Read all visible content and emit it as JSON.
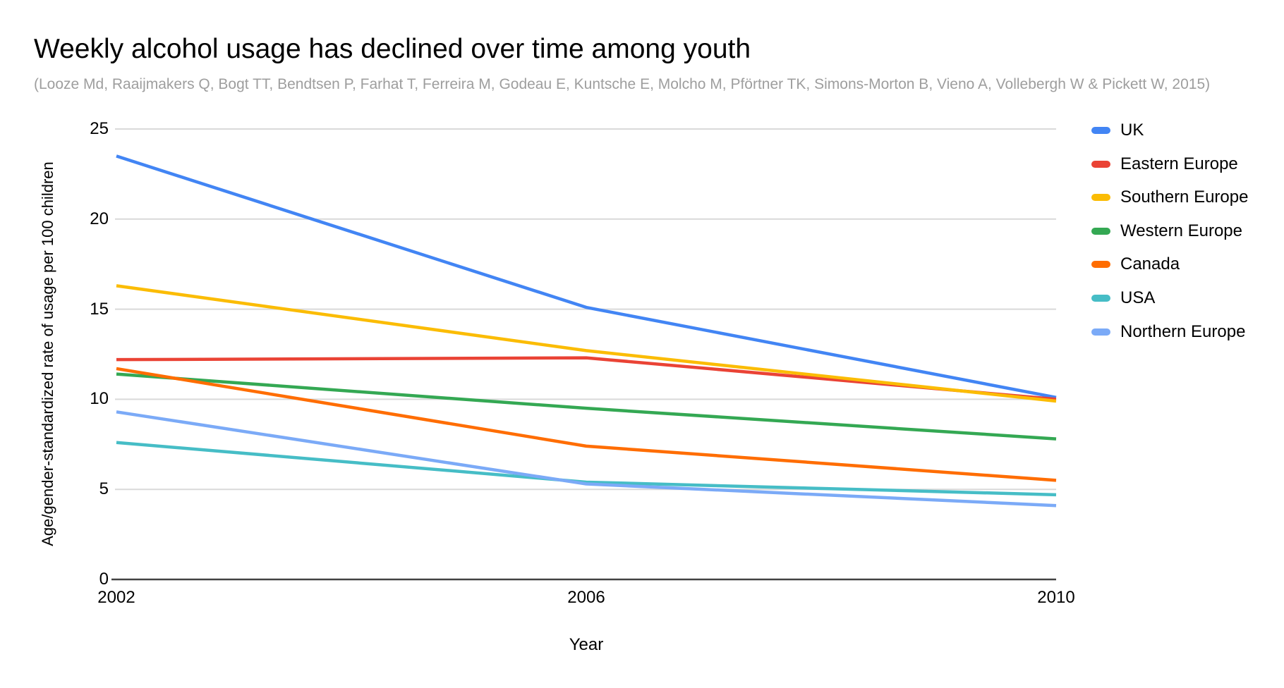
{
  "header": {
    "title": "Weekly alcohol usage has declined over time among youth",
    "subtitle": "(Looze Md, Raaijmakers Q, Bogt TT, Bendtsen P, Farhat T, Ferreira M, Godeau E, Kuntsche E, Molcho M, Pförtner TK, Simons-Morton B, Vieno A, Vollebergh W & Pickett W, 2015)"
  },
  "chart_data": {
    "type": "line",
    "x": [
      "2002",
      "2006",
      "2010"
    ],
    "series": [
      {
        "name": "UK",
        "color": "#4285F4",
        "values": [
          23.5,
          15.1,
          10.1
        ]
      },
      {
        "name": "Eastern Europe",
        "color": "#EA4335",
        "values": [
          12.2,
          12.3,
          10.0
        ]
      },
      {
        "name": "Southern Europe",
        "color": "#FBBC04",
        "values": [
          16.3,
          12.7,
          9.9
        ]
      },
      {
        "name": "Western Europe",
        "color": "#34A853",
        "values": [
          11.4,
          9.5,
          7.8
        ]
      },
      {
        "name": "Canada",
        "color": "#FF6D01",
        "values": [
          11.7,
          7.4,
          5.5
        ]
      },
      {
        "name": "USA",
        "color": "#46BDC6",
        "values": [
          7.6,
          5.4,
          4.7
        ]
      },
      {
        "name": "Northern Europe",
        "color": "#7BAAF7",
        "values": [
          9.3,
          5.3,
          4.1
        ]
      }
    ],
    "xlabel": "Year",
    "ylabel": "Age/gender-standardized rate of usage per 100 children",
    "yticks": [
      0,
      5,
      10,
      15,
      20,
      25
    ],
    "ylim": [
      0,
      25
    ],
    "grid": true,
    "legend_position": "right",
    "colors": {
      "gridline": "#d9d9d9",
      "axis": "#424242",
      "title_text": "#000000",
      "subtitle_text": "#9e9e9e"
    }
  }
}
